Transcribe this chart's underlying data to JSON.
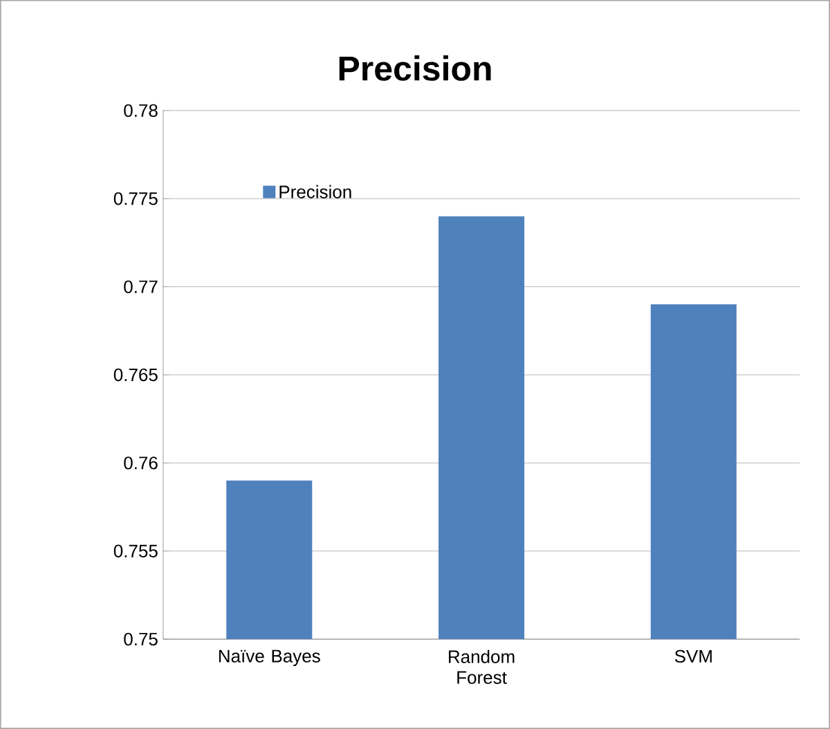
{
  "chart_data": {
    "type": "bar",
    "title": "Precision",
    "categories": [
      "Naïve Bayes",
      "Random Forest",
      "SVM"
    ],
    "series": [
      {
        "name": "Precision",
        "color": "#4f81bd",
        "values": [
          0.759,
          0.774,
          0.769
        ]
      }
    ],
    "ylim": [
      0.75,
      0.78
    ],
    "yticks": [
      0.75,
      0.755,
      0.76,
      0.765,
      0.77,
      0.775,
      0.78
    ],
    "grid": "y",
    "legend": "top left"
  }
}
